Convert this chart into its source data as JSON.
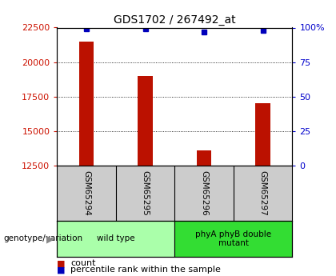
{
  "title": "GDS1702 / 267492_at",
  "samples": [
    "GSM65294",
    "GSM65295",
    "GSM65296",
    "GSM65297"
  ],
  "counts": [
    21500,
    19000,
    13600,
    17000
  ],
  "percentiles": [
    99,
    99,
    97,
    98
  ],
  "groups": [
    {
      "label": "wild type",
      "samples": [
        0,
        1
      ],
      "color": "#aaffaa"
    },
    {
      "label": "phyA phyB double\nmutant",
      "samples": [
        2,
        3
      ],
      "color": "#33dd33"
    }
  ],
  "ylim_left": [
    12500,
    22500
  ],
  "ylim_right": [
    0,
    100
  ],
  "yticks_left": [
    12500,
    15000,
    17500,
    20000,
    22500
  ],
  "yticks_right": [
    0,
    25,
    50,
    75,
    100
  ],
  "bar_color": "#bb1100",
  "dot_color": "#0000bb",
  "grid_color": "#000000",
  "bar_width": 0.25,
  "label_color_left": "#cc1100",
  "label_color_right": "#0000cc",
  "background_color": "#ffffff",
  "genotype_label": "genotype/variation",
  "sample_bg": "#cccccc",
  "legend_bar_label": "count",
  "legend_dot_label": "percentile rank within the sample"
}
